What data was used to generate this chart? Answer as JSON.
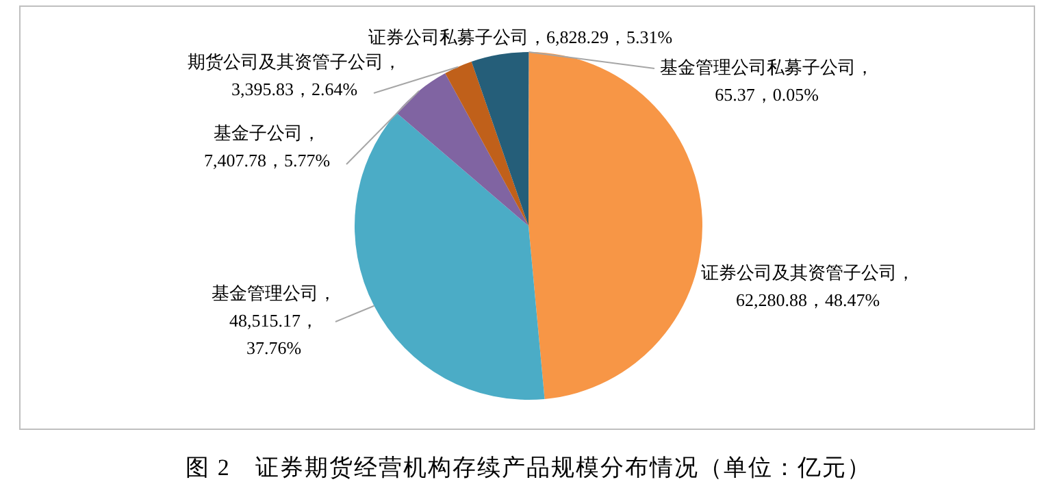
{
  "chart_data": {
    "type": "pie",
    "title": "图 2　证券期货经营机构存续产品规模分布情况（单位：亿元）",
    "categories": [
      "基金管理公司私募子公司",
      "证券公司及其资管子公司",
      "基金管理公司",
      "基金子公司",
      "期货公司及其资管子公司",
      "证券公司私募子公司"
    ],
    "values": [
      65.37,
      62280.88,
      48515.17,
      7407.78,
      3395.83,
      6828.29
    ],
    "colors": [
      "#7f7f7f",
      "#f79646",
      "#4bacc6",
      "#8064a2",
      "#c0601a",
      "#255e79"
    ],
    "value_labels": [
      "，65.37，0.05%",
      "，62,280.88，48.47%",
      "，48,515.17，37.76%",
      "，7,407.78，5.77%",
      "，3,395.83，2.64%",
      "，6,828.29，5.31%"
    ],
    "legend": false
  }
}
